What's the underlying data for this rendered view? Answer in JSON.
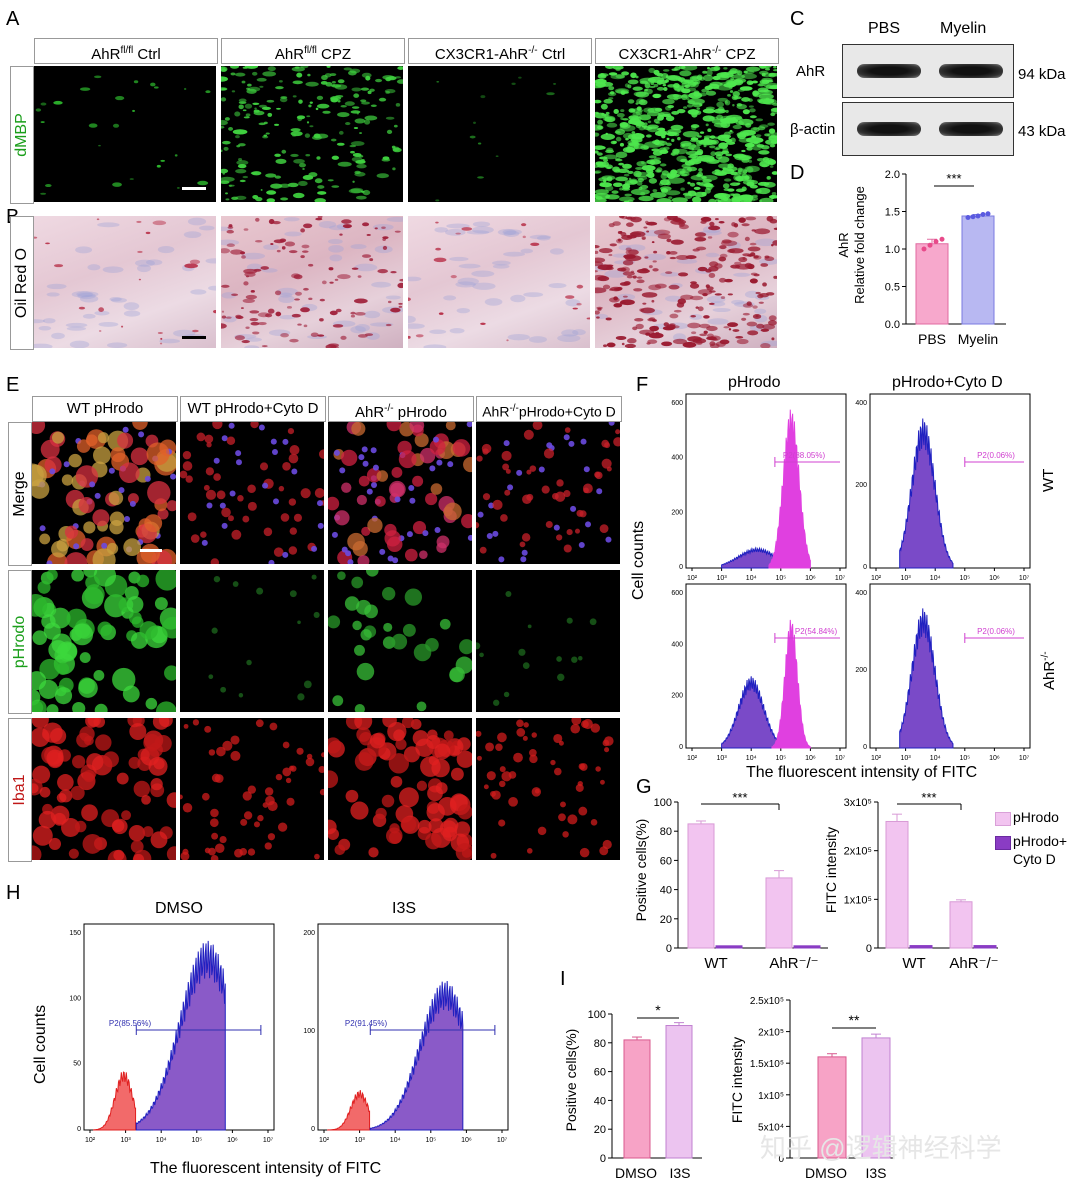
{
  "panel_letters": {
    "a": "A",
    "b": "B",
    "c": "C",
    "d": "D",
    "e": "E",
    "f": "F",
    "g": "G",
    "h": "H",
    "i": "I"
  },
  "panelA": {
    "headers": [
      {
        "main": "AhR",
        "sup": "fl/fl",
        "tail": " Ctrl"
      },
      {
        "main": "AhR",
        "sup": "fl/fl",
        "tail": " CPZ"
      },
      {
        "main": "CX3CR1-AhR",
        "sup": "-/-",
        "tail": " Ctrl"
      },
      {
        "main": "CX3CR1-AhR",
        "sup": "-/-",
        "tail": " CPZ"
      }
    ],
    "row_label": "dMBP"
  },
  "panelB": {
    "row_label": "Oil Red O"
  },
  "panelC": {
    "cols": [
      "PBS",
      "Myelin"
    ],
    "rows": [
      {
        "label": "AhR",
        "size": "94 kDa"
      },
      {
        "label": "β-actin",
        "size": "43 kDa"
      }
    ]
  },
  "panelD": {
    "ylabel1": "AhR",
    "ylabel2": "Relative fold change",
    "ticks": [
      "0.0",
      "0.5",
      "1.0",
      "1.5",
      "2.0"
    ],
    "sig": "***",
    "colors": {
      "pbs": "#f7a8cc",
      "myelin": "#b8b8f2",
      "pbs_dot": "#e84a8a",
      "myelin_dot": "#5a5ae0"
    }
  },
  "panelE": {
    "headers": [
      {
        "main": "WT pHrodo",
        "sup": "",
        "tail": ""
      },
      {
        "main": "WT pHrodo+Cyto D",
        "sup": "",
        "tail": ""
      },
      {
        "main": "AhR",
        "sup": "-/-",
        "tail": " pHrodo"
      },
      {
        "main": "AhR",
        "sup": "-/-",
        "tail": "pHrodo+Cyto D"
      }
    ],
    "rows": [
      {
        "label": "Merge",
        "color": "#000"
      },
      {
        "label": "pHrodo",
        "color": "#1a9e1a"
      },
      {
        "label": "Iba1",
        "color": "#c01818"
      }
    ]
  },
  "panelF": {
    "cols": [
      "pHrodo",
      "pHrodo+Cyto D"
    ],
    "rows": [
      {
        "label": "WT",
        "sup": ""
      },
      {
        "label": "AhR",
        "sup": "-/-"
      }
    ],
    "ylabel": "Cell counts",
    "xlabel": "The fluorescent intensity of FITC",
    "gates": [
      "P2(88.05%)",
      "P2(0.06%)",
      "P2(54.84%)",
      "P2(0.06%)"
    ],
    "yticks_top": [
      "0",
      "200",
      "400",
      "600"
    ],
    "yticks_bottom": [
      "0",
      "200",
      "400"
    ]
  },
  "panelG": {
    "left": {
      "ylabel": "Positive cells(%)",
      "ticks": [
        "0",
        "20",
        "40",
        "60",
        "80",
        "100"
      ]
    },
    "right": {
      "ylabel": "FITC intensity",
      "ticks": [
        "0",
        "1x10⁵",
        "2x10⁵",
        "3x10⁵"
      ]
    },
    "categories": [
      "WT",
      "AhR⁻/⁻"
    ],
    "sig": "***",
    "legend": [
      "pHrodo",
      "pHrodo+\nCyto D"
    ],
    "legend_line1": "pHrodo",
    "legend_line2a": "pHrodo+",
    "legend_line2b": "Cyto D"
  },
  "panelH": {
    "titles": [
      "DMSO",
      "I3S"
    ],
    "ylabel": "Cell counts",
    "xlabel": "The fluorescent intensity of FITC",
    "gates": [
      "P2(85.56%)",
      "P2(91.45%)"
    ],
    "yticks_left": [
      "0",
      "50",
      "100",
      "150"
    ],
    "yticks_right": [
      "0",
      "100",
      "200"
    ]
  },
  "panelI": {
    "left": {
      "ylabel": "Positive cells(%)",
      "ticks": [
        "0",
        "20",
        "40",
        "60",
        "80",
        "100"
      ],
      "sig": "*"
    },
    "right": {
      "ylabel": "FITC intensity",
      "ticks": [
        "0",
        "5x10⁴",
        "1x10⁵",
        "1.5x10⁵",
        "2x10⁵",
        "2.5x10⁵"
      ],
      "sig": "**"
    },
    "categories": [
      "DMSO",
      "I3S"
    ]
  },
  "watermark": "知乎 @逻辑神经科学",
  "chart_data": [
    {
      "type": "bar",
      "panel": "D",
      "categories": [
        "PBS",
        "Myelin"
      ],
      "values": [
        1.07,
        1.44
      ],
      "ylim": [
        0,
        2.0
      ],
      "ylabel": "AhR Relative fold change",
      "points": [
        [
          1.0,
          1.05,
          1.1,
          1.13
        ],
        [
          1.42,
          1.43,
          1.44,
          1.46,
          1.47
        ]
      ]
    },
    {
      "type": "bar",
      "panel": "G-left",
      "categories": [
        "WT",
        "AhR-/-"
      ],
      "series": [
        {
          "name": "pHrodo",
          "values": [
            85,
            48
          ]
        },
        {
          "name": "pHrodo+Cyto D",
          "values": [
            1.5,
            1.5
          ]
        }
      ],
      "ylim": [
        0,
        100
      ],
      "ylabel": "Positive cells(%)"
    },
    {
      "type": "bar",
      "panel": "G-right",
      "categories": [
        "WT",
        "AhR-/-"
      ],
      "series": [
        {
          "name": "pHrodo",
          "values": [
            260000,
            95000
          ]
        },
        {
          "name": "pHrodo+Cyto D",
          "values": [
            5000,
            5000
          ]
        }
      ],
      "ylim": [
        0,
        300000
      ],
      "ylabel": "FITC intensity"
    },
    {
      "type": "bar",
      "panel": "I-left",
      "categories": [
        "DMSO",
        "I3S"
      ],
      "values": [
        82,
        92
      ],
      "ylim": [
        0,
        100
      ],
      "ylabel": "Positive cells(%)"
    },
    {
      "type": "bar",
      "panel": "I-right",
      "categories": [
        "DMSO",
        "I3S"
      ],
      "values": [
        160000,
        190000
      ],
      "ylim": [
        0,
        250000
      ],
      "ylabel": "FITC intensity"
    }
  ]
}
